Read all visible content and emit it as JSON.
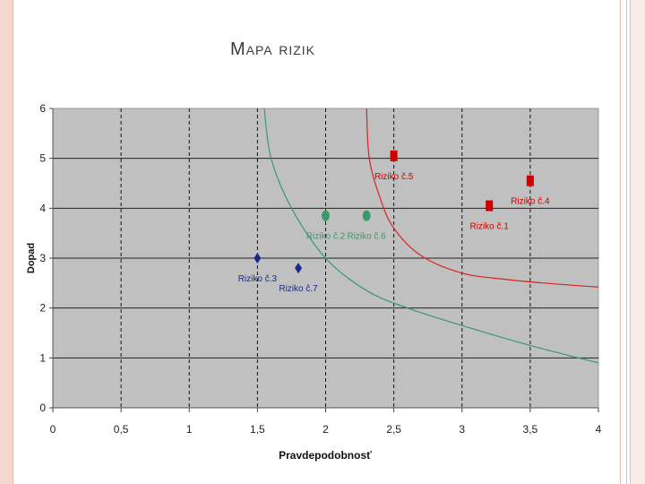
{
  "slide": {
    "title": "MAPA RIZIK"
  },
  "chart_data": {
    "type": "scatter",
    "title": "",
    "xlabel": "Pravdepodobnosť",
    "ylabel": "Dopad",
    "xlim": [
      0,
      4
    ],
    "ylim": [
      0,
      6
    ],
    "x_ticks": [
      "0",
      "0,5",
      "1",
      "1,5",
      "2",
      "2,5",
      "3",
      "3,5",
      "4"
    ],
    "y_ticks": [
      "0",
      "1",
      "2",
      "3",
      "4",
      "5",
      "6"
    ],
    "grid": "vertical dashed, horizontal solid",
    "plot_background": "#c0c0c0",
    "series": [
      {
        "color": "#cc0000",
        "marker": "square",
        "points": [
          {
            "label": "Riziko č.5",
            "x": 2.5,
            "y": 5.05
          },
          {
            "label": "Riziko č.1",
            "x": 3.2,
            "y": 4.05
          },
          {
            "label": "Riziko č.4",
            "x": 3.5,
            "y": 4.55
          }
        ]
      },
      {
        "color": "#3a9a6a",
        "marker": "circle",
        "points": [
          {
            "label": "Riziko č.2",
            "x": 2.0,
            "y": 3.85
          },
          {
            "label": "Riziko č.6",
            "x": 2.3,
            "y": 3.85
          }
        ]
      },
      {
        "color": "#1a2a8a",
        "marker": "diamond",
        "points": [
          {
            "label": "Riziko č.3",
            "x": 1.5,
            "y": 3.0
          },
          {
            "label": "Riziko č.7",
            "x": 1.8,
            "y": 2.8
          }
        ]
      }
    ],
    "curves": [
      {
        "color": "#dd2222",
        "points": [
          [
            2.3,
            6.0
          ],
          [
            2.32,
            5.0
          ],
          [
            2.4,
            4.2
          ],
          [
            2.5,
            3.6
          ],
          [
            2.7,
            3.05
          ],
          [
            3.0,
            2.7
          ],
          [
            3.3,
            2.58
          ],
          [
            3.6,
            2.5
          ],
          [
            4.0,
            2.42
          ]
        ]
      },
      {
        "color": "#3a9a6a",
        "points": [
          [
            1.55,
            6.0
          ],
          [
            1.6,
            5.0
          ],
          [
            1.75,
            4.0
          ],
          [
            2.0,
            3.0
          ],
          [
            2.3,
            2.35
          ],
          [
            2.6,
            2.0
          ],
          [
            3.0,
            1.65
          ],
          [
            3.5,
            1.25
          ],
          [
            4.0,
            0.9
          ]
        ]
      }
    ]
  }
}
